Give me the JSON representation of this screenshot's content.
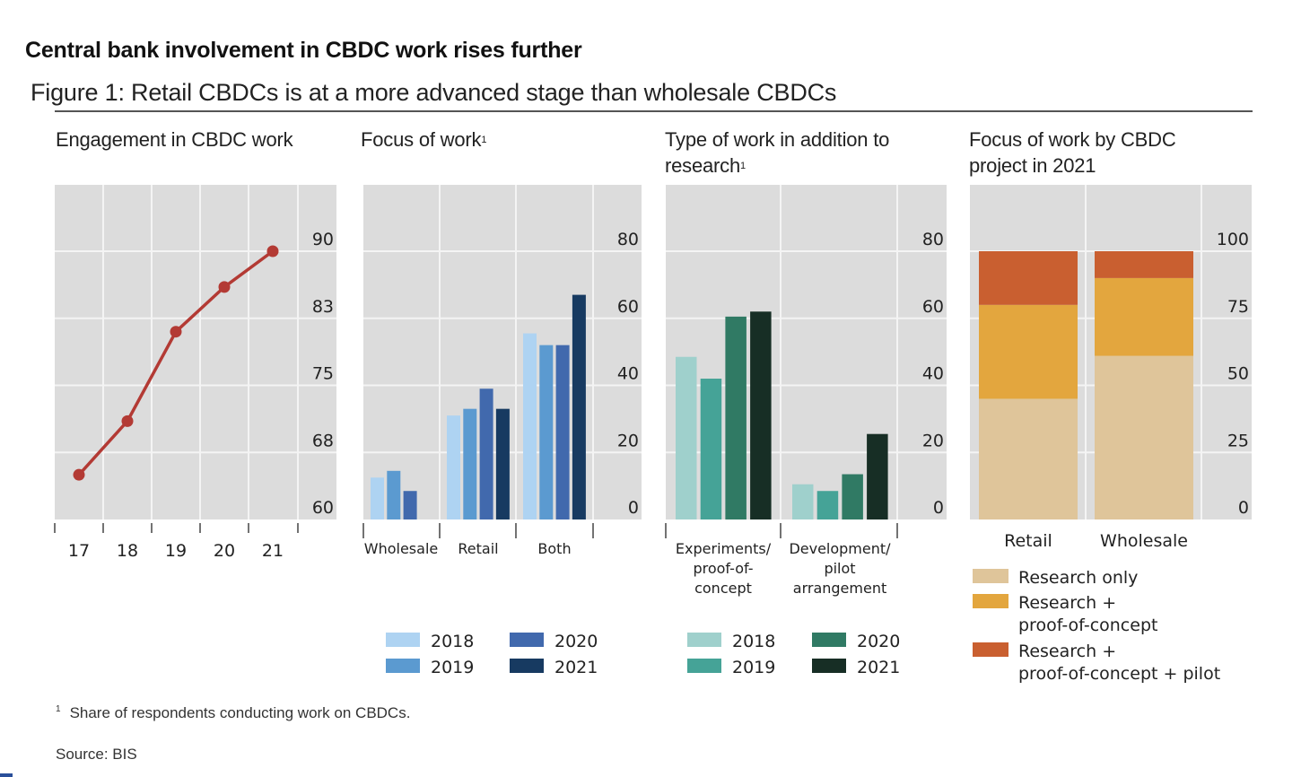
{
  "header": {
    "title": "Central bank involvement in CBDC work rises further",
    "figure_title": "Figure 1: Retail CBDCs is at a more advanced stage than wholesale CBDCs"
  },
  "footnote": {
    "marker": "1",
    "text": "Share of respondents conducting work on CBDCs."
  },
  "source": "Source:  BIS",
  "chart_data": [
    {
      "type": "line",
      "title": "Engagement in CBDC work",
      "title_footnote": "",
      "x": [
        "17",
        "18",
        "19",
        "20",
        "21"
      ],
      "series": [
        {
          "name": "Engagement",
          "values": [
            65,
            71,
            81,
            86,
            90
          ],
          "color": "#b33a34"
        }
      ],
      "yticks": [
        "60",
        "68",
        "75",
        "83",
        "90"
      ],
      "ylim": [
        60,
        90
      ],
      "yaxis_position": "right",
      "grid": true,
      "xlabel": "",
      "ylabel": ""
    },
    {
      "type": "bar",
      "title": "Focus of work",
      "title_footnote": "1",
      "categories": [
        "Wholesale",
        "Retail",
        "Both"
      ],
      "series": [
        {
          "name": "2018",
          "values": [
            12.5,
            31,
            55.5
          ],
          "color": "#aed3f2"
        },
        {
          "name": "2019",
          "values": [
            14.5,
            33,
            52
          ],
          "color": "#5b9ad0"
        },
        {
          "name": "2020",
          "values": [
            8.5,
            39,
            52
          ],
          "color": "#4169ad"
        },
        {
          "name": "2021",
          "values": [
            null,
            33,
            67
          ],
          "color": "#173a61"
        }
      ],
      "yticks": [
        "0",
        "20",
        "40",
        "60",
        "80"
      ],
      "ylim": [
        0,
        80
      ],
      "yaxis_position": "right",
      "grid": true,
      "legend_placement": "bottom",
      "xlabel": "",
      "ylabel": ""
    },
    {
      "type": "bar",
      "title": "Type of work in addition to research",
      "title_footnote": "1",
      "categories": [
        "Experiments/ proof-of- concept",
        "Development/ pilot arrangement"
      ],
      "category_lines": [
        [
          "Experiments/",
          "proof-of-",
          "concept"
        ],
        [
          "Development/",
          "pilot",
          "arrangement"
        ]
      ],
      "series": [
        {
          "name": "2018",
          "values": [
            48.5,
            10.5
          ],
          "color": "#9fd0cc"
        },
        {
          "name": "2019",
          "values": [
            42,
            8.5
          ],
          "color": "#45a397"
        },
        {
          "name": "2020",
          "values": [
            60.5,
            13.5
          ],
          "color": "#307a64"
        },
        {
          "name": "2021",
          "values": [
            62,
            25.5
          ],
          "color": "#172e25"
        }
      ],
      "yticks": [
        "0",
        "20",
        "40",
        "60",
        "80"
      ],
      "ylim": [
        0,
        80
      ],
      "yaxis_position": "right",
      "grid": true,
      "legend_placement": "bottom",
      "xlabel": "",
      "ylabel": ""
    },
    {
      "type": "bar",
      "stacked": true,
      "title": "Focus of work by CBDC project in 2021",
      "title_footnote": "",
      "categories": [
        "Retail",
        "Wholesale"
      ],
      "series": [
        {
          "name": "Research only",
          "values": [
            45,
            61
          ],
          "color": "#dfc59a"
        },
        {
          "name": "Research + proof-of-concept",
          "legend_lines": [
            "Research +",
            "proof-of-concept"
          ],
          "values": [
            35,
            29
          ],
          "color": "#e3a63e"
        },
        {
          "name": "Research + proof-of-concept + pilot",
          "legend_lines": [
            "Research +",
            "proof-of-concept + pilot"
          ],
          "values": [
            20,
            10
          ],
          "color": "#c95f30"
        }
      ],
      "yticks": [
        "0",
        "25",
        "50",
        "75",
        "100"
      ],
      "ylim": [
        0,
        100
      ],
      "yaxis_position": "right",
      "grid": true,
      "legend_placement": "bottom",
      "xlabel": "",
      "ylabel": ""
    }
  ]
}
